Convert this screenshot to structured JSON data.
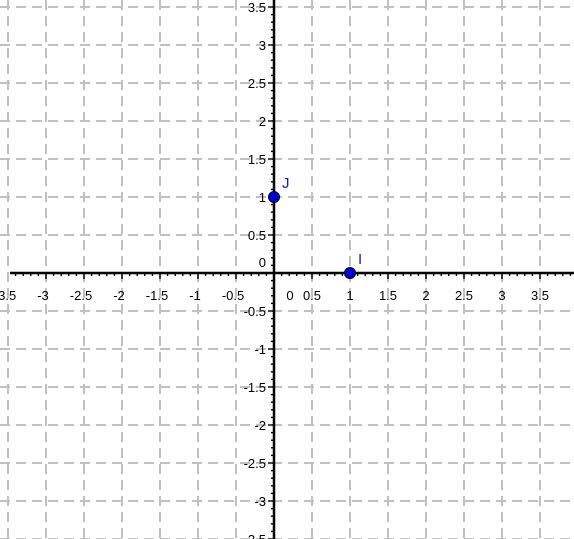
{
  "chart_data": {
    "type": "scatter",
    "title": "",
    "xlabel": "",
    "ylabel": "",
    "xlim": [
      -3.5,
      3.9
    ],
    "ylim": [
      -3.5,
      3.5
    ],
    "grid": true,
    "grid_style": "dashed",
    "grid_step": 0.5,
    "x_tick_labels": [
      "-3.5",
      "-3",
      "-2.5",
      "-2",
      "-1.5",
      "-1",
      "-0.5",
      "0",
      "0.5",
      "1",
      "1.5",
      "2",
      "2.5",
      "3",
      "3.5"
    ],
    "y_tick_labels": [
      "-3.5",
      "-3",
      "-2.5",
      "-2",
      "-1.5",
      "-1",
      "-0.5",
      "0",
      "0.5",
      "1",
      "1.5",
      "2",
      "2.5",
      "3",
      "3.5"
    ],
    "points": [
      {
        "name": "I",
        "x": 1,
        "y": 0
      },
      {
        "name": "J",
        "x": 0,
        "y": 1
      }
    ]
  },
  "colors": {
    "background": "#ffffff",
    "axis": "#000000",
    "grid": "#c0c0c0",
    "point": "#0000cc",
    "point_label": "#1a1acc"
  }
}
